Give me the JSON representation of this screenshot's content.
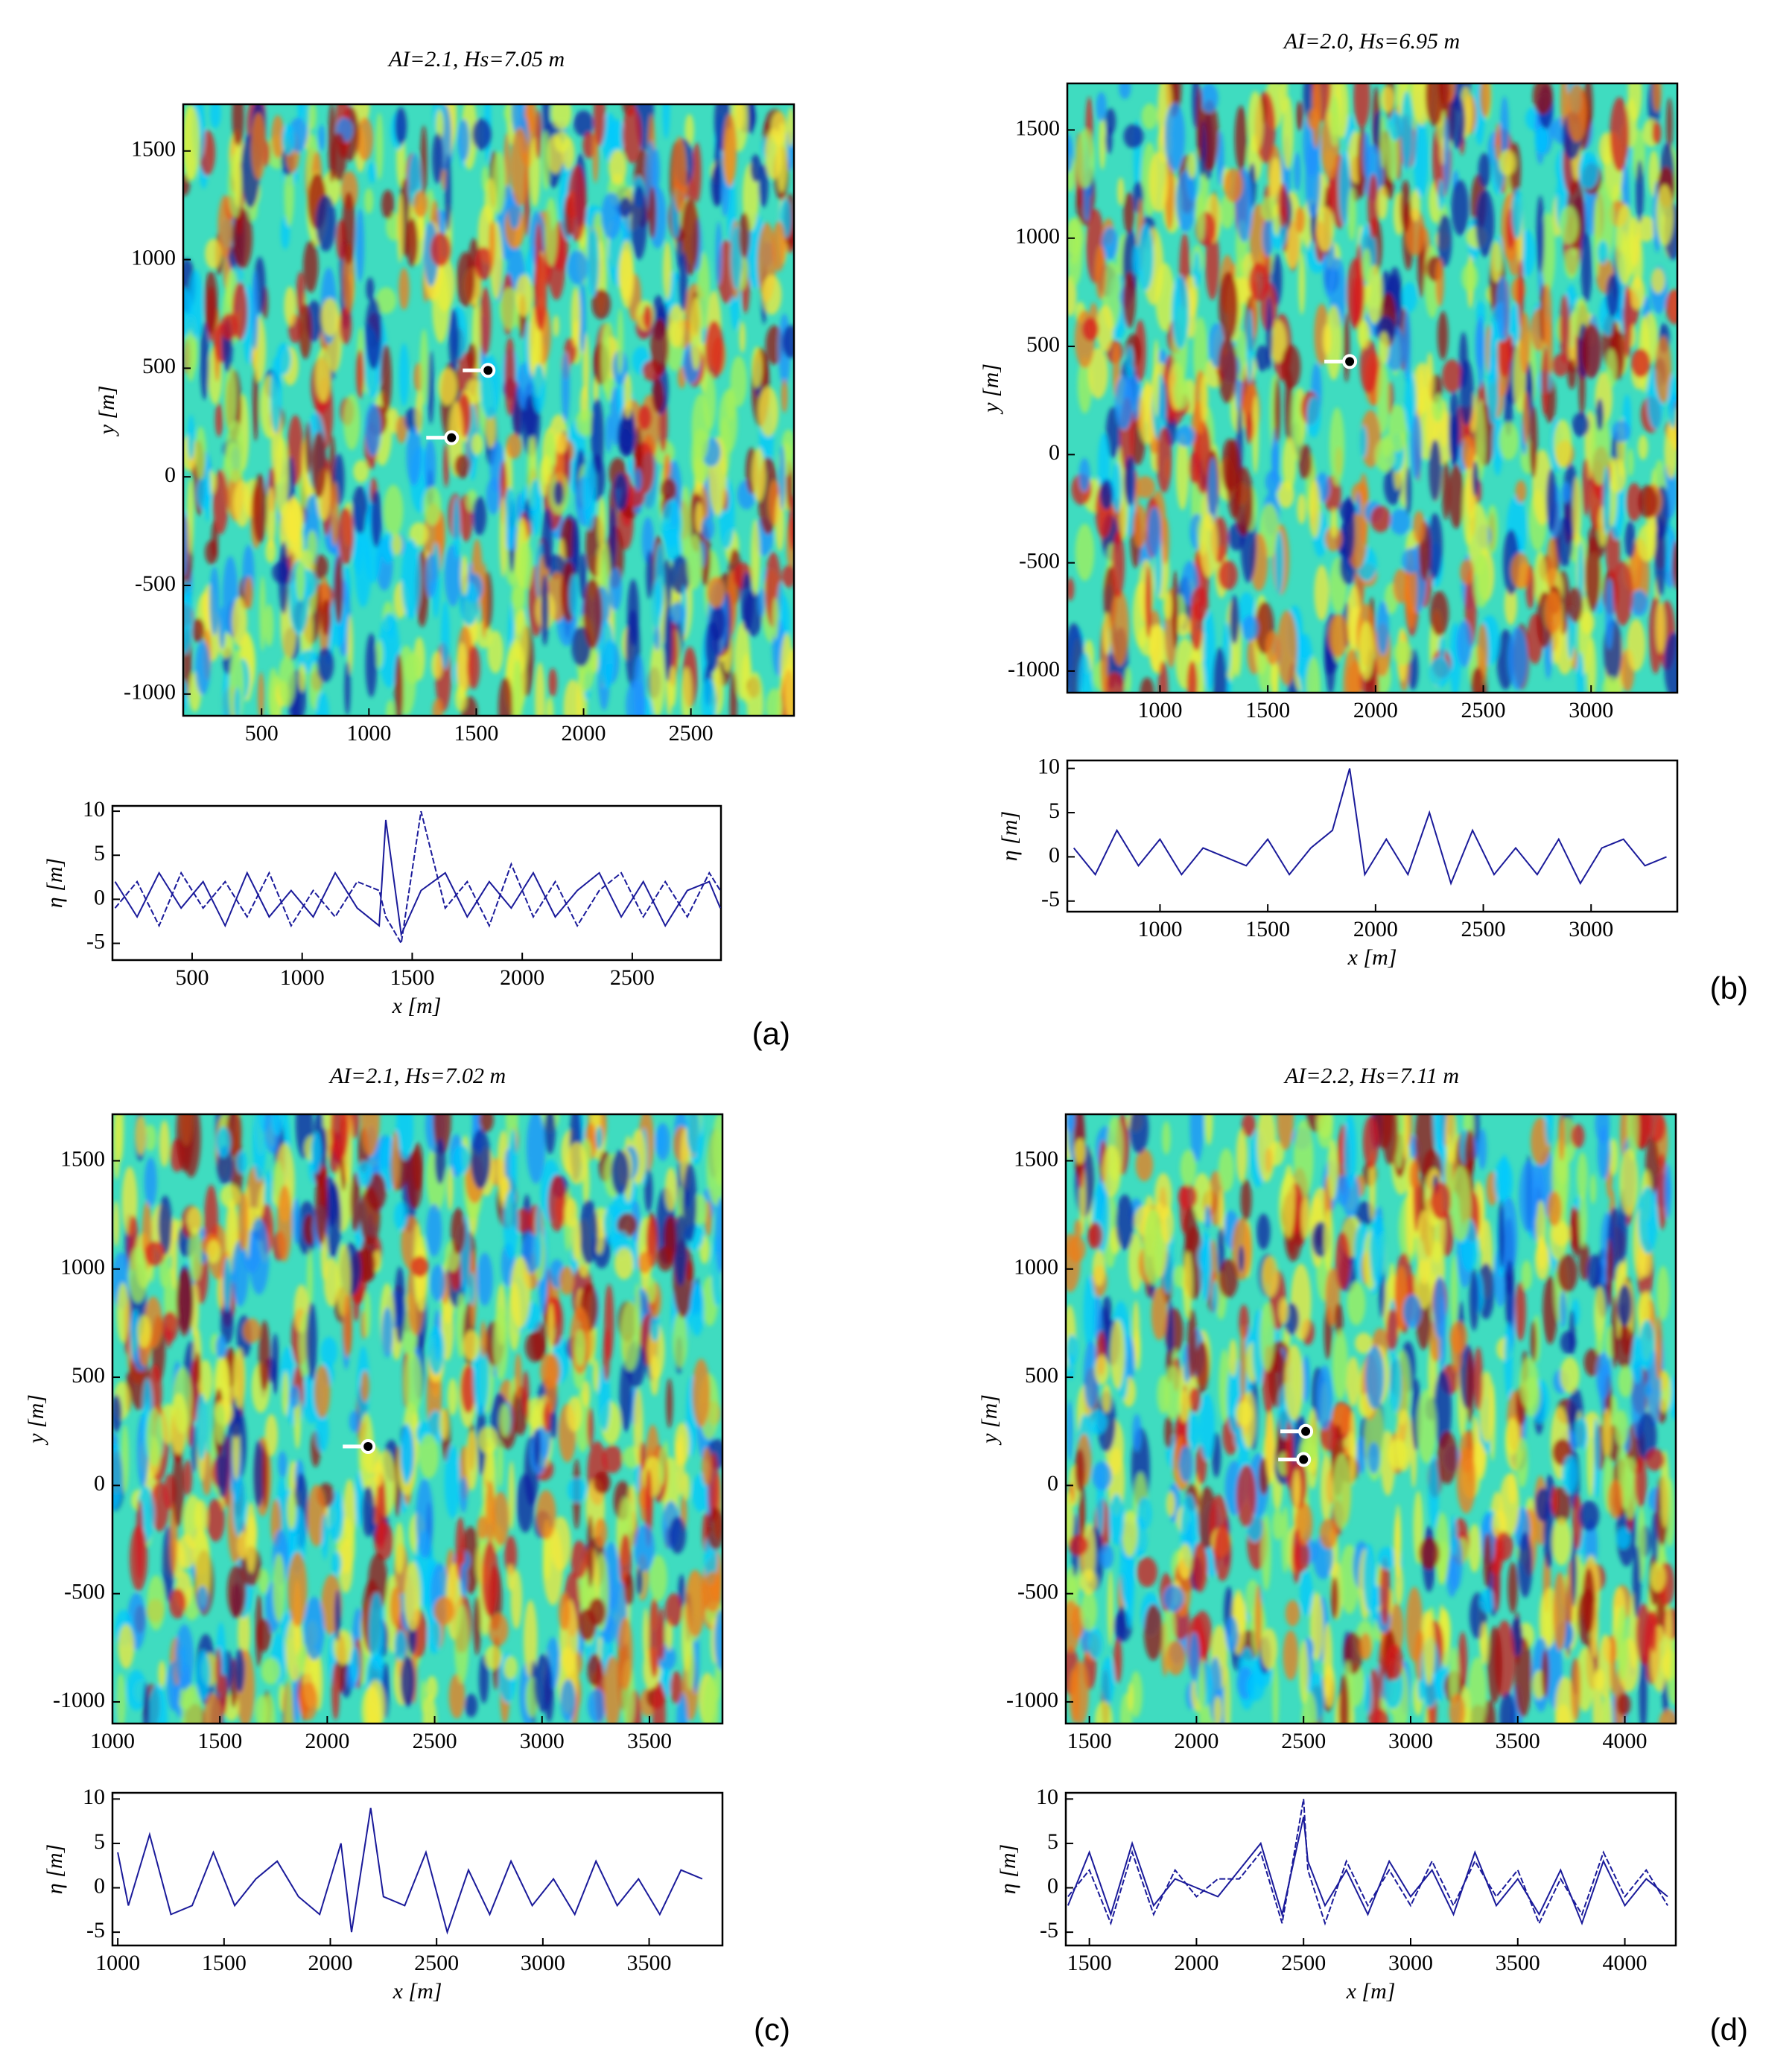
{
  "chart_data": [
    {
      "type": "line",
      "title": "AI=2.1, Hs=7.05 m",
      "panel_label": "(a)",
      "map": {
        "xlim": [
          135,
          2980
        ],
        "ylim": [
          -1100,
          1715
        ],
        "xticks": [
          500,
          1000,
          1500,
          2000,
          2500
        ],
        "yticks": [
          -1000,
          -500,
          0,
          500,
          1000,
          1500
        ],
        "ylabel": "y [m]",
        "markers": [
          {
            "x": 1555,
            "y": 490
          },
          {
            "x": 1385,
            "y": 180
          }
        ]
      },
      "xlabel": "x [m]",
      "ylabel": "η [m]",
      "xlim": [
        138,
        2903
      ],
      "ylim": [
        -6.9,
        10.6
      ],
      "xticks": [
        500,
        1000,
        1500,
        2000,
        2500
      ],
      "yticks": [
        -5,
        0,
        5,
        10
      ],
      "x": [
        150,
        250,
        350,
        450,
        550,
        650,
        750,
        850,
        950,
        1050,
        1150,
        1250,
        1350,
        1380,
        1450,
        1540,
        1650,
        1750,
        1850,
        1950,
        2050,
        2150,
        2250,
        2350,
        2450,
        2550,
        2650,
        2750,
        2850,
        2900
      ],
      "series": [
        {
          "color": "#1a1a9a",
          "values": [
            2,
            -2,
            3,
            -1,
            2,
            -3,
            3,
            -2,
            1,
            -2,
            3,
            -1,
            -3,
            9,
            -4,
            1,
            3,
            -2,
            2,
            -1,
            3,
            -2,
            1,
            3,
            -2,
            2,
            -3,
            1,
            2,
            -1
          ]
        },
        {
          "color": "#1a1a9a",
          "values": [
            -1,
            2,
            -3,
            3,
            -1,
            2,
            -2,
            3,
            -3,
            1,
            -2,
            2,
            1,
            -2,
            -5,
            10,
            -1,
            2,
            -3,
            4,
            -2,
            2,
            -3,
            1,
            3,
            -2,
            2,
            -2,
            3,
            1
          ]
        }
      ]
    },
    {
      "type": "line",
      "title": "AI=2.0, Hs=6.95 m",
      "panel_label": "(b)",
      "map": {
        "xlim": [
          570,
          3400
        ],
        "ylim": [
          -1100,
          1715
        ],
        "xticks": [
          1000,
          1500,
          2000,
          2500,
          3000
        ],
        "yticks": [
          -1000,
          -500,
          0,
          500,
          1000,
          1500
        ],
        "ylabel": "y [m]",
        "markers": [
          {
            "x": 1880,
            "y": 430
          }
        ]
      },
      "xlabel": "x [m]",
      "ylabel": "η [m]",
      "xlim": [
        570,
        3400
      ],
      "ylim": [
        -6.2,
        10.9
      ],
      "xticks": [
        1000,
        1500,
        2000,
        2500,
        3000
      ],
      "yticks": [
        -5,
        0,
        5,
        10
      ],
      "x": [
        600,
        700,
        800,
        900,
        1000,
        1100,
        1200,
        1300,
        1400,
        1500,
        1600,
        1700,
        1800,
        1880,
        1950,
        2050,
        2150,
        2250,
        2350,
        2450,
        2550,
        2650,
        2750,
        2850,
        2950,
        3050,
        3150,
        3250,
        3350
      ],
      "series": [
        {
          "color": "#1a1a9a",
          "values": [
            1,
            -2,
            3,
            -1,
            2,
            -2,
            1,
            0,
            -1,
            2,
            -2,
            1,
            3,
            10,
            -2,
            2,
            -2,
            5,
            -3,
            3,
            -2,
            1,
            -2,
            2,
            -3,
            1,
            2,
            -1,
            0
          ]
        }
      ]
    },
    {
      "type": "line",
      "title": "AI=2.1, Hs=7.02 m",
      "panel_label": "(c)",
      "map": {
        "xlim": [
          1000,
          3840
        ],
        "ylim": [
          -1100,
          1715
        ],
        "xticks": [
          1000,
          1500,
          2000,
          2500,
          3000,
          3500
        ],
        "yticks": [
          -1000,
          -500,
          0,
          500,
          1000,
          1500
        ],
        "ylabel": "y [m]",
        "markers": [
          {
            "x": 2190,
            "y": 180
          }
        ]
      },
      "xlabel": "x [m]",
      "ylabel": "η [m]",
      "xlim": [
        975,
        3845
      ],
      "ylim": [
        -6.5,
        10.7
      ],
      "xticks": [
        1000,
        1500,
        2000,
        2500,
        3000,
        3500
      ],
      "yticks": [
        -5,
        0,
        5,
        10
      ],
      "x": [
        1000,
        1050,
        1150,
        1250,
        1350,
        1450,
        1550,
        1650,
        1750,
        1850,
        1950,
        2050,
        2100,
        2190,
        2250,
        2350,
        2450,
        2550,
        2650,
        2750,
        2850,
        2950,
        3050,
        3150,
        3250,
        3350,
        3450,
        3550,
        3650,
        3750
      ],
      "series": [
        {
          "color": "#1a1a9a",
          "values": [
            4,
            -2,
            6,
            -3,
            -2,
            4,
            -2,
            1,
            3,
            -1,
            -3,
            5,
            -5,
            9,
            -1,
            -2,
            4,
            -5,
            2,
            -3,
            3,
            -2,
            1,
            -3,
            3,
            -2,
            1,
            -3,
            2,
            1
          ]
        }
      ]
    },
    {
      "type": "line",
      "title": "AI=2.2, Hs=7.11 m",
      "panel_label": "(d)",
      "map": {
        "xlim": [
          1390,
          4238
        ],
        "ylim": [
          -1100,
          1715
        ],
        "xticks": [
          1500,
          2000,
          2500,
          3000,
          3500,
          4000
        ],
        "yticks": [
          -1000,
          -500,
          0,
          500,
          1000,
          1500
        ],
        "ylabel": "y [m]",
        "markers": [
          {
            "x": 2510,
            "y": 250
          },
          {
            "x": 2500,
            "y": 120
          }
        ]
      },
      "xlabel": "x [m]",
      "ylabel": "η [m]",
      "xlim": [
        1390,
        4238
      ],
      "ylim": [
        -6.5,
        10.7
      ],
      "xticks": [
        1500,
        2000,
        2500,
        3000,
        3500,
        4000
      ],
      "yticks": [
        -5,
        0,
        5,
        10
      ],
      "x": [
        1400,
        1500,
        1600,
        1700,
        1800,
        1900,
        2000,
        2100,
        2200,
        2300,
        2400,
        2500,
        2520,
        2600,
        2700,
        2800,
        2900,
        3000,
        3100,
        3200,
        3300,
        3400,
        3500,
        3600,
        3700,
        3800,
        3900,
        4000,
        4100,
        4200
      ],
      "series": [
        {
          "color": "#1a1a9a",
          "values": [
            -2,
            4,
            -3,
            5,
            -2,
            1,
            0,
            -1,
            2,
            5,
            -3,
            8,
            3,
            -2,
            2,
            -3,
            3,
            -1,
            2,
            -3,
            4,
            -2,
            1,
            -3,
            2,
            -4,
            3,
            -2,
            1,
            -1
          ]
        },
        {
          "color": "#1a1a9a",
          "values": [
            -1,
            2,
            -4,
            4,
            -3,
            2,
            -1,
            1,
            1,
            4,
            -4,
            10,
            2,
            -4,
            3,
            -2,
            2,
            -2,
            3,
            -2,
            3,
            -1,
            2,
            -4,
            1,
            -3,
            4,
            -1,
            2,
            -2
          ]
        }
      ]
    }
  ]
}
